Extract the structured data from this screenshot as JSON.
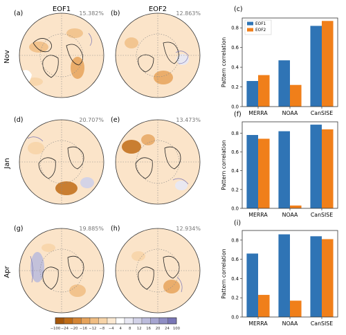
{
  "figure": {
    "col_titles": [
      "EOF1",
      "EOF2"
    ],
    "row_labels": [
      "Nov",
      "Jan",
      "Apr"
    ],
    "colors": {
      "eof1": "#2f74b5",
      "eof2": "#f07f1a",
      "land_fill": "#fbe4c9",
      "coast": "#222222"
    }
  },
  "maps": [
    {
      "panel": "(a)",
      "variance": "15.382%"
    },
    {
      "panel": "(b)",
      "variance": "12.863%"
    },
    {
      "panel": "(d)",
      "variance": "20.707%"
    },
    {
      "panel": "(e)",
      "variance": "13.473%"
    },
    {
      "panel": "(g)",
      "variance": "19.885%"
    },
    {
      "panel": "(h)",
      "variance": "12.934%"
    }
  ],
  "colorbar": {
    "ticks": [
      "−100",
      "−24",
      "−20",
      "−16",
      "−12",
      "−8",
      "−4",
      "4",
      "8",
      "12",
      "16",
      "20",
      "24",
      "100"
    ],
    "colors": [
      "#a5560a",
      "#c06c16",
      "#d58635",
      "#e6a35b",
      "#f0bd82",
      "#f7d4a8",
      "#fbe9d2",
      "#ffffff",
      "#e8e8f3",
      "#d2d2e8",
      "#bcbcdc",
      "#a6a5d0",
      "#8f8ec4",
      "#7976b6"
    ]
  },
  "chart_data": [
    {
      "panel": "(c)",
      "type": "bar",
      "categories": [
        "MERRA",
        "NOAA",
        "CanSISE"
      ],
      "series": [
        {
          "name": "EOF1",
          "values": [
            0.26,
            0.47,
            0.82
          ]
        },
        {
          "name": "EOF2",
          "values": [
            0.32,
            0.22,
            0.87
          ]
        }
      ],
      "ylabel": "Pattern correlation",
      "ylim": [
        0,
        0.9
      ],
      "yticks": [
        "0.0",
        "0.2",
        "0.4",
        "0.6",
        "0.8"
      ],
      "legend": "top-left"
    },
    {
      "panel": "(f)",
      "type": "bar",
      "categories": [
        "MERRA",
        "NOAA",
        "CanSISE"
      ],
      "series": [
        {
          "name": "EOF1",
          "values": [
            0.78,
            0.82,
            0.89
          ]
        },
        {
          "name": "EOF2",
          "values": [
            0.74,
            0.03,
            0.84
          ]
        }
      ],
      "ylabel": "Pattern correlation",
      "ylim": [
        0,
        0.92
      ],
      "yticks": [
        "0.0",
        "0.2",
        "0.4",
        "0.6",
        "0.8"
      ]
    },
    {
      "panel": "(i)",
      "type": "bar",
      "categories": [
        "MERRA",
        "NOAA",
        "CanSISE"
      ],
      "series": [
        {
          "name": "EOF1",
          "values": [
            0.66,
            0.86,
            0.84
          ]
        },
        {
          "name": "EOF2",
          "values": [
            0.23,
            0.17,
            0.81
          ]
        }
      ],
      "ylabel": "Pattern correlation",
      "ylim": [
        0,
        0.9
      ],
      "yticks": [
        "0.0",
        "0.2",
        "0.4",
        "0.6",
        "0.8"
      ]
    }
  ]
}
